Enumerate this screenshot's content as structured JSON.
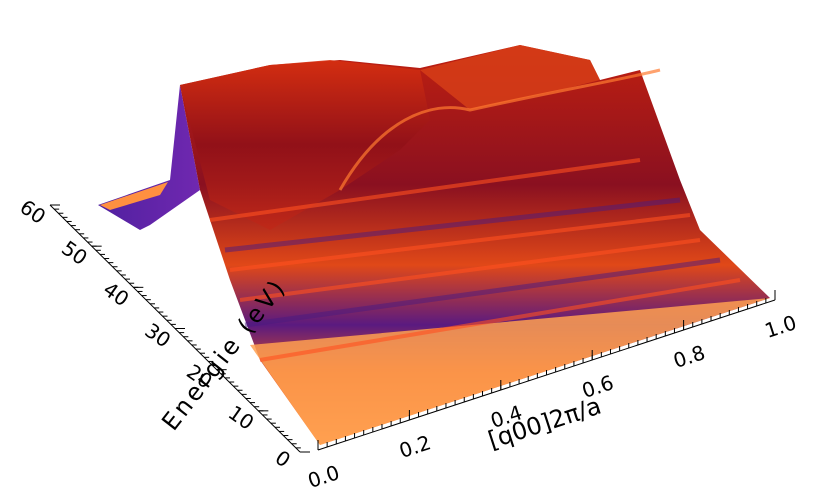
{
  "chart_data": {
    "type": "surface",
    "x_label": "[q00]2π/a",
    "y_label": "Energie (eV)",
    "xlim": [
      0,
      1
    ],
    "xticks": [
      {
        "value": 0,
        "label": "0.0"
      },
      0.2,
      0.4,
      0.6,
      0.8,
      {
        "value": 1,
        "label": "1.0"
      }
    ],
    "ylim": [
      0,
      60
    ],
    "yticks": [
      0,
      10,
      20,
      30,
      40,
      50,
      60
    ]
  }
}
